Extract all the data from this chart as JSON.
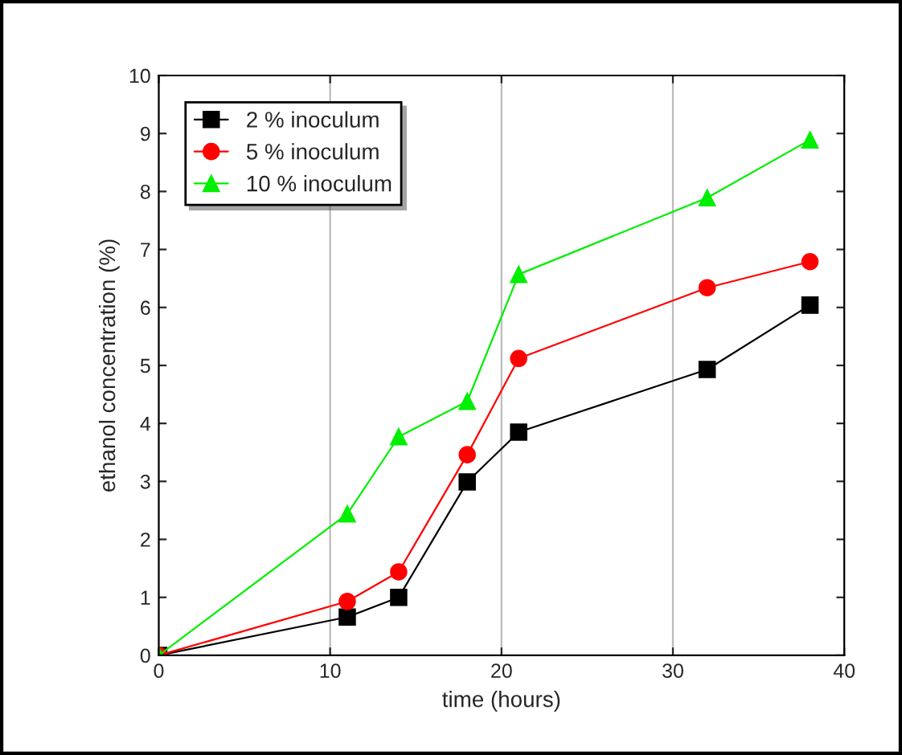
{
  "chart_data": {
    "type": "line",
    "xlabel": "time (hours)",
    "ylabel": "ethanol concentration (%)",
    "x": [
      0,
      11,
      14,
      18,
      21,
      32,
      38
    ],
    "series": [
      {
        "name": "2 % inoculum",
        "color": "#000000",
        "marker": "square",
        "values": [
          0,
          0.66,
          1.0,
          2.99,
          3.85,
          4.93,
          6.04
        ]
      },
      {
        "name": "5 % inoculum",
        "color": "#ff0000",
        "marker": "circle",
        "values": [
          0,
          0.93,
          1.44,
          3.46,
          5.12,
          6.34,
          6.79
        ]
      },
      {
        "name": "10 % inoculum",
        "color": "#00ee00",
        "marker": "triangle",
        "values": [
          0,
          2.44,
          3.77,
          4.38,
          6.57,
          7.89,
          8.89
        ]
      }
    ],
    "xlim": [
      0,
      40
    ],
    "xticks": [
      0,
      10,
      20,
      30,
      40
    ],
    "ylim": [
      0,
      10
    ],
    "yticks": [
      0,
      1,
      2,
      3,
      4,
      5,
      6,
      7,
      8,
      9,
      10
    ],
    "grid": "x",
    "legend": "top left",
    "line_style": "solid"
  }
}
